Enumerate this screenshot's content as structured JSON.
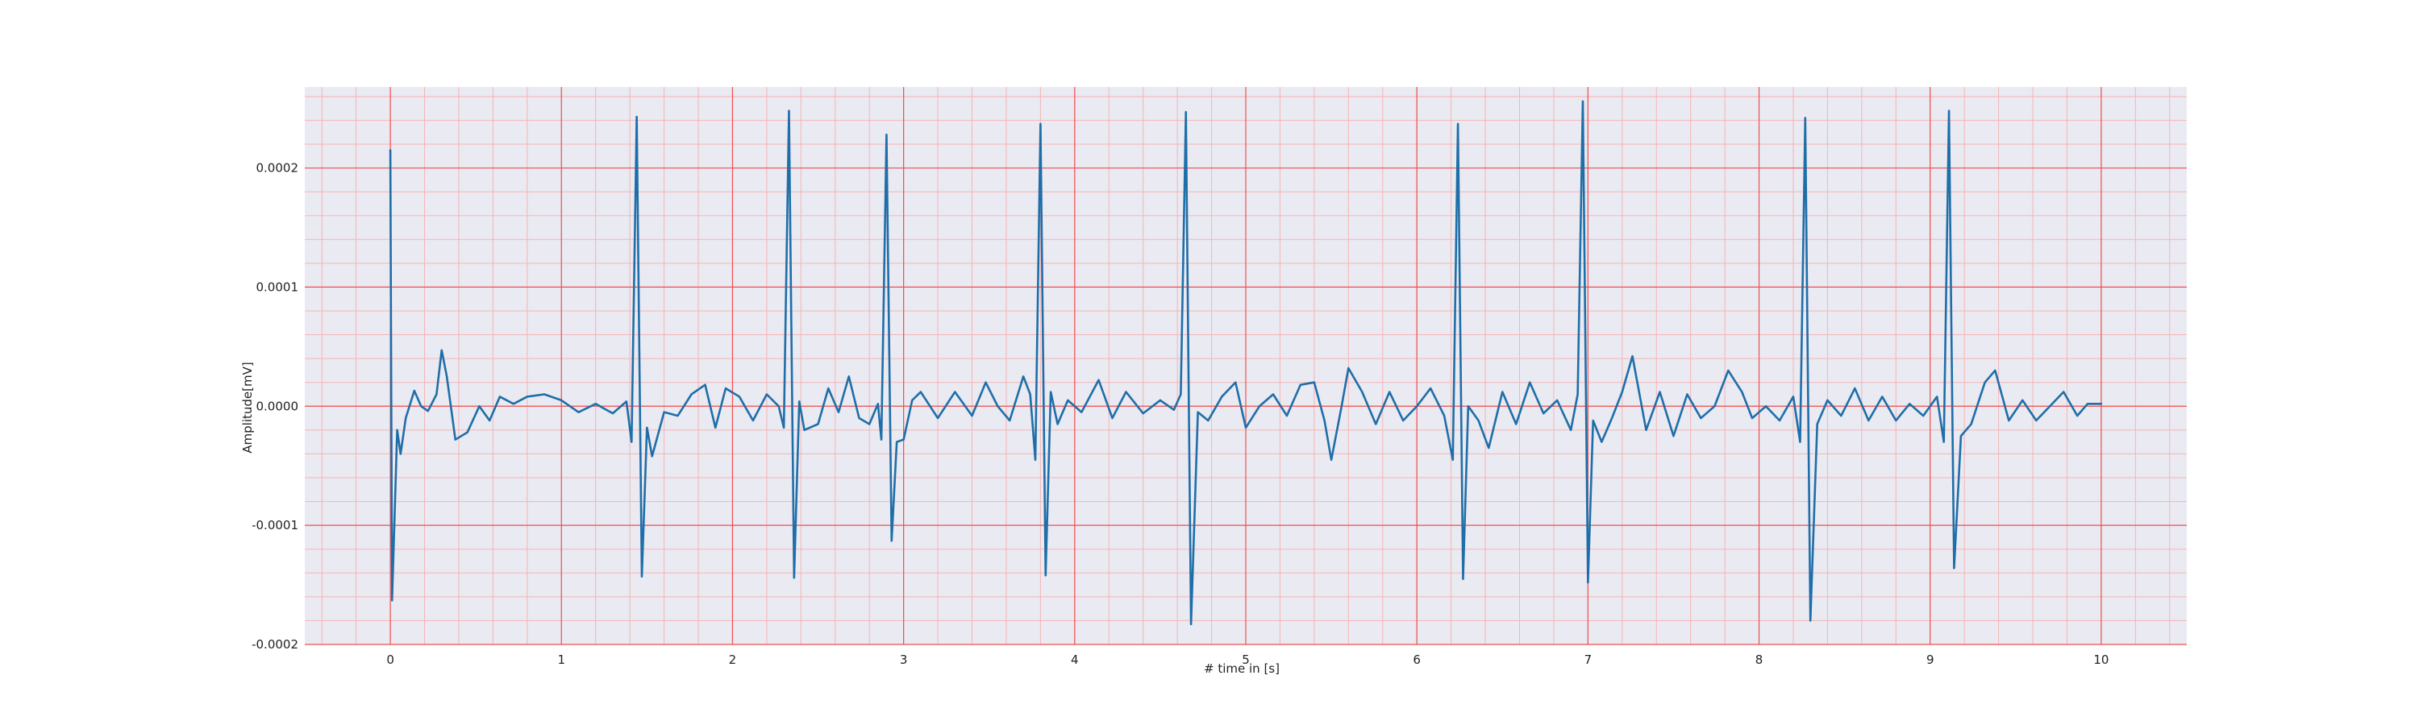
{
  "chart_data": {
    "type": "line",
    "title": "",
    "xlabel": "# time in [s]",
    "ylabel": "Amplitude[mV]",
    "xlim": [
      -0.5,
      10.5
    ],
    "ylim": [
      -0.0002,
      0.000268
    ],
    "x_ticks": [
      0,
      1,
      2,
      3,
      4,
      5,
      6,
      7,
      8,
      9,
      10
    ],
    "x_tick_labels": [
      "0",
      "1",
      "2",
      "3",
      "4",
      "5",
      "6",
      "7",
      "8",
      "9",
      "10"
    ],
    "y_ticks": [
      -0.0002,
      -0.0001,
      0.0,
      0.0001,
      0.0002
    ],
    "y_tick_labels": [
      "-0.0002",
      "-0.0001",
      "0.0000",
      "0.0001",
      "0.0002"
    ],
    "x_minor_step": 0.2,
    "y_minor_step": 2e-05,
    "grid": "major and minor",
    "legend": "none",
    "colors": {
      "background": "#eaeaf2",
      "major_grid": "#ee5050",
      "minor_grid": "#f6b4b4",
      "line": "#1f6ea8",
      "figure": "#ffffff"
    },
    "beat_times": [
      0.0,
      1.44,
      2.33,
      2.9,
      3.8,
      4.65,
      6.24,
      6.97,
      8.27,
      9.11
    ],
    "r_peaks": [
      0.000215,
      0.000243,
      0.000248,
      0.000228,
      0.000237,
      0.000247,
      0.000237,
      0.000256,
      0.000242,
      0.000248
    ],
    "s_troughs": [
      -0.000163,
      -0.000143,
      -0.000144,
      -0.000113,
      -0.000142,
      -0.000183,
      -0.000145,
      -0.000148,
      -0.00018,
      -0.000136
    ],
    "series": [
      {
        "points": [
          [
            0.0,
            0.000215
          ],
          [
            0.01,
            -0.000163
          ],
          [
            0.04,
            -2e-05
          ],
          [
            0.06,
            -4e-05
          ],
          [
            0.09,
            -1e-05
          ],
          [
            0.14,
            1.3e-05
          ],
          [
            0.18,
            0.0
          ],
          [
            0.22,
            -4e-06
          ],
          [
            0.27,
            1e-05
          ],
          [
            0.3,
            4.7e-05
          ],
          [
            0.33,
            2.5e-05
          ],
          [
            0.38,
            -2.8e-05
          ],
          [
            0.45,
            -2.2e-05
          ],
          [
            0.52,
            0.0
          ],
          [
            0.58,
            -1.2e-05
          ],
          [
            0.64,
            8e-06
          ],
          [
            0.72,
            2e-06
          ],
          [
            0.8,
            8e-06
          ],
          [
            0.9,
            1e-05
          ],
          [
            1.0,
            5e-06
          ],
          [
            1.1,
            -5e-06
          ],
          [
            1.2,
            2e-06
          ],
          [
            1.3,
            -6e-06
          ],
          [
            1.38,
            4e-06
          ],
          [
            1.41,
            -3e-05
          ],
          [
            1.44,
            0.000243
          ],
          [
            1.47,
            -0.000143
          ],
          [
            1.5,
            -1.8e-05
          ],
          [
            1.53,
            -4.2e-05
          ],
          [
            1.6,
            -5e-06
          ],
          [
            1.68,
            -8e-06
          ],
          [
            1.76,
            1e-05
          ],
          [
            1.84,
            1.8e-05
          ],
          [
            1.9,
            -1.8e-05
          ],
          [
            1.96,
            1.5e-05
          ],
          [
            2.04,
            8e-06
          ],
          [
            2.12,
            -1.2e-05
          ],
          [
            2.2,
            1e-05
          ],
          [
            2.27,
            0.0
          ],
          [
            2.3,
            -1.8e-05
          ],
          [
            2.33,
            0.000248
          ],
          [
            2.36,
            -0.000144
          ],
          [
            2.39,
            4e-06
          ],
          [
            2.42,
            -2e-05
          ],
          [
            2.5,
            -1.5e-05
          ],
          [
            2.56,
            1.5e-05
          ],
          [
            2.62,
            -5e-06
          ],
          [
            2.68,
            2.5e-05
          ],
          [
            2.74,
            -1e-05
          ],
          [
            2.8,
            -1.5e-05
          ],
          [
            2.85,
            2e-06
          ],
          [
            2.87,
            -2.8e-05
          ],
          [
            2.9,
            0.000228
          ],
          [
            2.93,
            -0.000113
          ],
          [
            2.96,
            -3e-05
          ],
          [
            3.0,
            -2.8e-05
          ],
          [
            3.05,
            5e-06
          ],
          [
            3.1,
            1.2e-05
          ],
          [
            3.2,
            -1e-05
          ],
          [
            3.3,
            1.2e-05
          ],
          [
            3.4,
            -8e-06
          ],
          [
            3.48,
            2e-05
          ],
          [
            3.55,
            0.0
          ],
          [
            3.62,
            -1.2e-05
          ],
          [
            3.7,
            2.5e-05
          ],
          [
            3.74,
            1e-05
          ],
          [
            3.77,
            -4.5e-05
          ],
          [
            3.8,
            0.000237
          ],
          [
            3.83,
            -0.000142
          ],
          [
            3.86,
            1.2e-05
          ],
          [
            3.9,
            -1.5e-05
          ],
          [
            3.96,
            5e-06
          ],
          [
            4.04,
            -5e-06
          ],
          [
            4.14,
            2.2e-05
          ],
          [
            4.22,
            -1e-05
          ],
          [
            4.3,
            1.2e-05
          ],
          [
            4.4,
            -6e-06
          ],
          [
            4.5,
            5e-06
          ],
          [
            4.58,
            -3e-06
          ],
          [
            4.62,
            1e-05
          ],
          [
            4.65,
            0.000247
          ],
          [
            4.68,
            -0.000183
          ],
          [
            4.72,
            -5e-06
          ],
          [
            4.78,
            -1.2e-05
          ],
          [
            4.86,
            8e-06
          ],
          [
            4.94,
            2e-05
          ],
          [
            5.0,
            -1.8e-05
          ],
          [
            5.08,
            0.0
          ],
          [
            5.16,
            1e-05
          ],
          [
            5.24,
            -8e-06
          ],
          [
            5.32,
            1.8e-05
          ],
          [
            5.4,
            2e-05
          ],
          [
            5.46,
            -1.2e-05
          ],
          [
            5.5,
            -4.5e-05
          ],
          [
            5.56,
            0.0
          ],
          [
            5.6,
            3.2e-05
          ],
          [
            5.68,
            1.2e-05
          ],
          [
            5.76,
            -1.5e-05
          ],
          [
            5.84,
            1.2e-05
          ],
          [
            5.92,
            -1.2e-05
          ],
          [
            6.0,
            0.0
          ],
          [
            6.08,
            1.5e-05
          ],
          [
            6.16,
            -8e-06
          ],
          [
            6.21,
            -4.5e-05
          ],
          [
            6.24,
            0.000237
          ],
          [
            6.27,
            -0.000145
          ],
          [
            6.3,
            0.0
          ],
          [
            6.36,
            -1.2e-05
          ],
          [
            6.42,
            -3.5e-05
          ],
          [
            6.5,
            1.2e-05
          ],
          [
            6.58,
            -1.5e-05
          ],
          [
            6.66,
            2e-05
          ],
          [
            6.74,
            -6e-06
          ],
          [
            6.82,
            5e-06
          ],
          [
            6.9,
            -2e-05
          ],
          [
            6.94,
            1e-05
          ],
          [
            6.97,
            0.000256
          ],
          [
            7.0,
            -0.000148
          ],
          [
            7.03,
            -1.2e-05
          ],
          [
            7.08,
            -3e-05
          ],
          [
            7.14,
            -1e-05
          ],
          [
            7.2,
            1.2e-05
          ],
          [
            7.26,
            4.2e-05
          ],
          [
            7.34,
            -2e-05
          ],
          [
            7.42,
            1.2e-05
          ],
          [
            7.5,
            -2.5e-05
          ],
          [
            7.58,
            1e-05
          ],
          [
            7.66,
            -1e-05
          ],
          [
            7.74,
            0.0
          ],
          [
            7.82,
            3e-05
          ],
          [
            7.9,
            1.2e-05
          ],
          [
            7.96,
            -1e-05
          ],
          [
            8.04,
            0.0
          ],
          [
            8.12,
            -1.2e-05
          ],
          [
            8.2,
            8e-06
          ],
          [
            8.24,
            -3e-05
          ],
          [
            8.27,
            0.000242
          ],
          [
            8.3,
            -0.00018
          ],
          [
            8.34,
            -1.5e-05
          ],
          [
            8.4,
            5e-06
          ],
          [
            8.48,
            -8e-06
          ],
          [
            8.56,
            1.5e-05
          ],
          [
            8.64,
            -1.2e-05
          ],
          [
            8.72,
            8e-06
          ],
          [
            8.8,
            -1.2e-05
          ],
          [
            8.88,
            2e-06
          ],
          [
            8.96,
            -8e-06
          ],
          [
            9.04,
            8e-06
          ],
          [
            9.08,
            -3e-05
          ],
          [
            9.11,
            0.000248
          ],
          [
            9.14,
            -0.000136
          ],
          [
            9.18,
            -2.5e-05
          ],
          [
            9.24,
            -1.5e-05
          ],
          [
            9.32,
            2e-05
          ],
          [
            9.38,
            3e-05
          ],
          [
            9.46,
            -1.2e-05
          ],
          [
            9.54,
            5e-06
          ],
          [
            9.62,
            -1.2e-05
          ],
          [
            9.7,
            0.0
          ],
          [
            9.78,
            1.2e-05
          ],
          [
            9.86,
            -8e-06
          ],
          [
            9.92,
            2e-06
          ],
          [
            10.0,
            2e-06
          ]
        ]
      }
    ]
  }
}
